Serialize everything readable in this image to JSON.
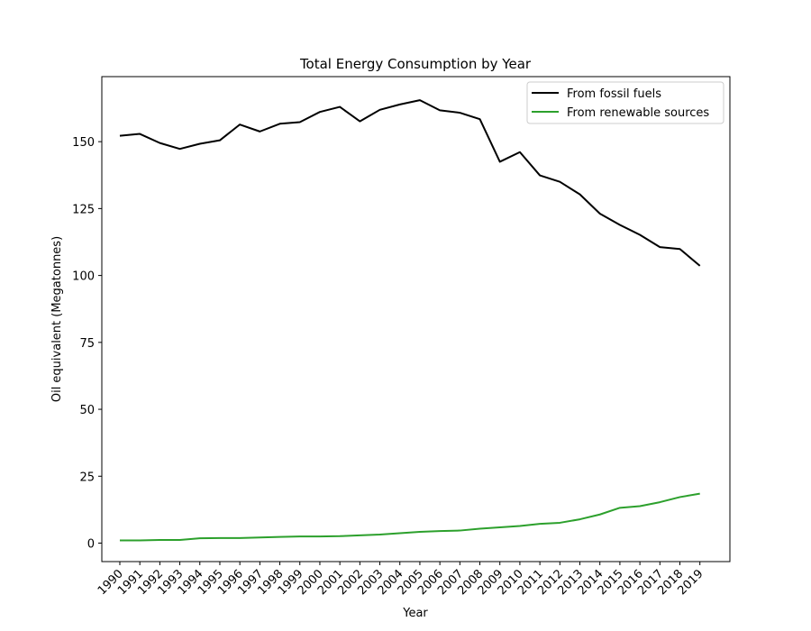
{
  "chart_data": {
    "type": "line",
    "title": "Total Energy Consumption by Year",
    "xlabel": "Year",
    "ylabel": "Oil equivalent (Megatonnes)",
    "x": [
      1990,
      1991,
      1992,
      1993,
      1994,
      1995,
      1996,
      1997,
      1998,
      1999,
      2000,
      2001,
      2002,
      2003,
      2004,
      2005,
      2006,
      2007,
      2008,
      2009,
      2010,
      2011,
      2012,
      2013,
      2014,
      2015,
      2016,
      2017,
      2018,
      2019
    ],
    "x_tick_labels": [
      "1990",
      "1991",
      "1992",
      "1993",
      "1994",
      "1995",
      "1996",
      "1997",
      "1998",
      "1999",
      "2000",
      "2001",
      "2002",
      "2003",
      "2004",
      "2005",
      "2006",
      "2007",
      "2008",
      "2009",
      "2010",
      "2011",
      "2012",
      "2013",
      "2014",
      "2015",
      "2016",
      "2017",
      "2018",
      "2019"
    ],
    "y_ticks": [
      0,
      25,
      50,
      75,
      100,
      125,
      150
    ],
    "y_tick_labels": [
      "0",
      "25",
      "50",
      "75",
      "100",
      "125",
      "150"
    ],
    "ylim": [
      -6.9,
      174.3
    ],
    "xlim": [
      1989.1,
      2020.5
    ],
    "grid": false,
    "legend_position": "top-right",
    "series": [
      {
        "name": "From fossil fuels",
        "color": "#000000",
        "values": [
          152.2,
          152.9,
          149.5,
          147.3,
          149.2,
          150.5,
          156.4,
          153.8,
          156.7,
          157.3,
          161.1,
          163.0,
          157.6,
          161.9,
          163.9,
          165.5,
          161.7,
          160.8,
          158.4,
          142.5,
          146.1,
          137.4,
          135.0,
          130.3,
          123.1,
          118.9,
          115.2,
          110.6,
          109.9,
          103.6
        ]
      },
      {
        "name": "From renewable sources",
        "color": "#2ca02c",
        "values": [
          1.0,
          1.0,
          1.2,
          1.2,
          1.8,
          1.9,
          1.9,
          2.1,
          2.3,
          2.5,
          2.5,
          2.6,
          2.9,
          3.2,
          3.7,
          4.2,
          4.5,
          4.7,
          5.4,
          5.9,
          6.4,
          7.2,
          7.6,
          8.9,
          10.7,
          13.2,
          13.8,
          15.3,
          17.2,
          18.5
        ]
      }
    ]
  }
}
